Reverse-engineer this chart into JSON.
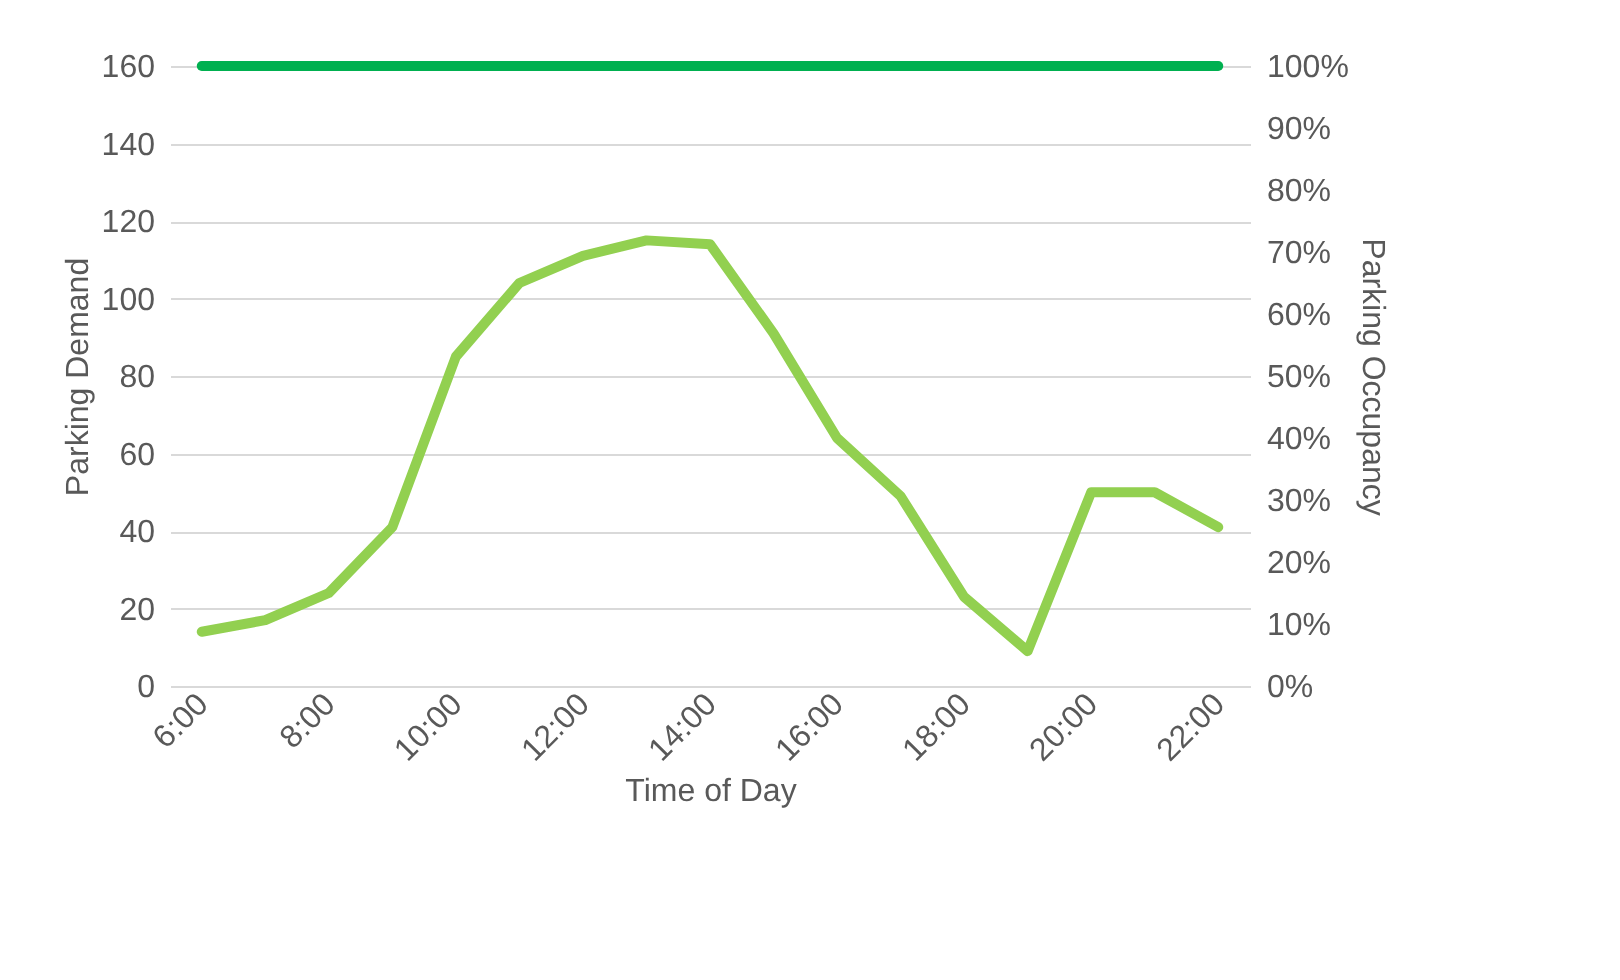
{
  "chart_data": {
    "type": "line",
    "xlabel": "Time of Day",
    "ylabel": "Parking Demand",
    "y2label": "Parking Occupancy",
    "categories": [
      "6:00",
      null,
      "8:00",
      null,
      "10:00",
      null,
      "12:00",
      null,
      "14:00",
      null,
      "16:00",
      null,
      "18:00",
      null,
      "20:00",
      null,
      "22:00"
    ],
    "series": [
      {
        "color": "#92d050",
        "values": [
          14,
          17,
          24,
          41,
          85,
          104,
          111,
          115,
          114,
          91,
          64,
          49,
          23,
          9,
          50,
          50,
          41
        ]
      },
      {
        "color": "#00b050",
        "axis": "y2",
        "values": [
          100,
          100,
          100,
          100,
          100,
          100,
          100,
          100,
          100,
          100,
          100,
          100,
          100,
          100,
          100,
          100,
          100
        ]
      }
    ],
    "ylim": [
      0,
      160
    ],
    "yticks": [
      0,
      20,
      40,
      60,
      80,
      100,
      120,
      140,
      160
    ],
    "y2lim": [
      0,
      100
    ],
    "y2ticks": [
      {
        "value": 0,
        "label": "0%"
      },
      {
        "value": 10,
        "label": "10%"
      },
      {
        "value": 20,
        "label": "20%"
      },
      {
        "value": 30,
        "label": "30%"
      },
      {
        "value": 40,
        "label": "40%"
      },
      {
        "value": 50,
        "label": "50%"
      },
      {
        "value": 60,
        "label": "60%"
      },
      {
        "value": 70,
        "label": "70%"
      },
      {
        "value": 80,
        "label": "80%"
      },
      {
        "value": 90,
        "label": "90%"
      },
      {
        "value": 100,
        "label": "100%"
      }
    ],
    "grid": "y",
    "line_style": "solid",
    "marker": "none"
  }
}
